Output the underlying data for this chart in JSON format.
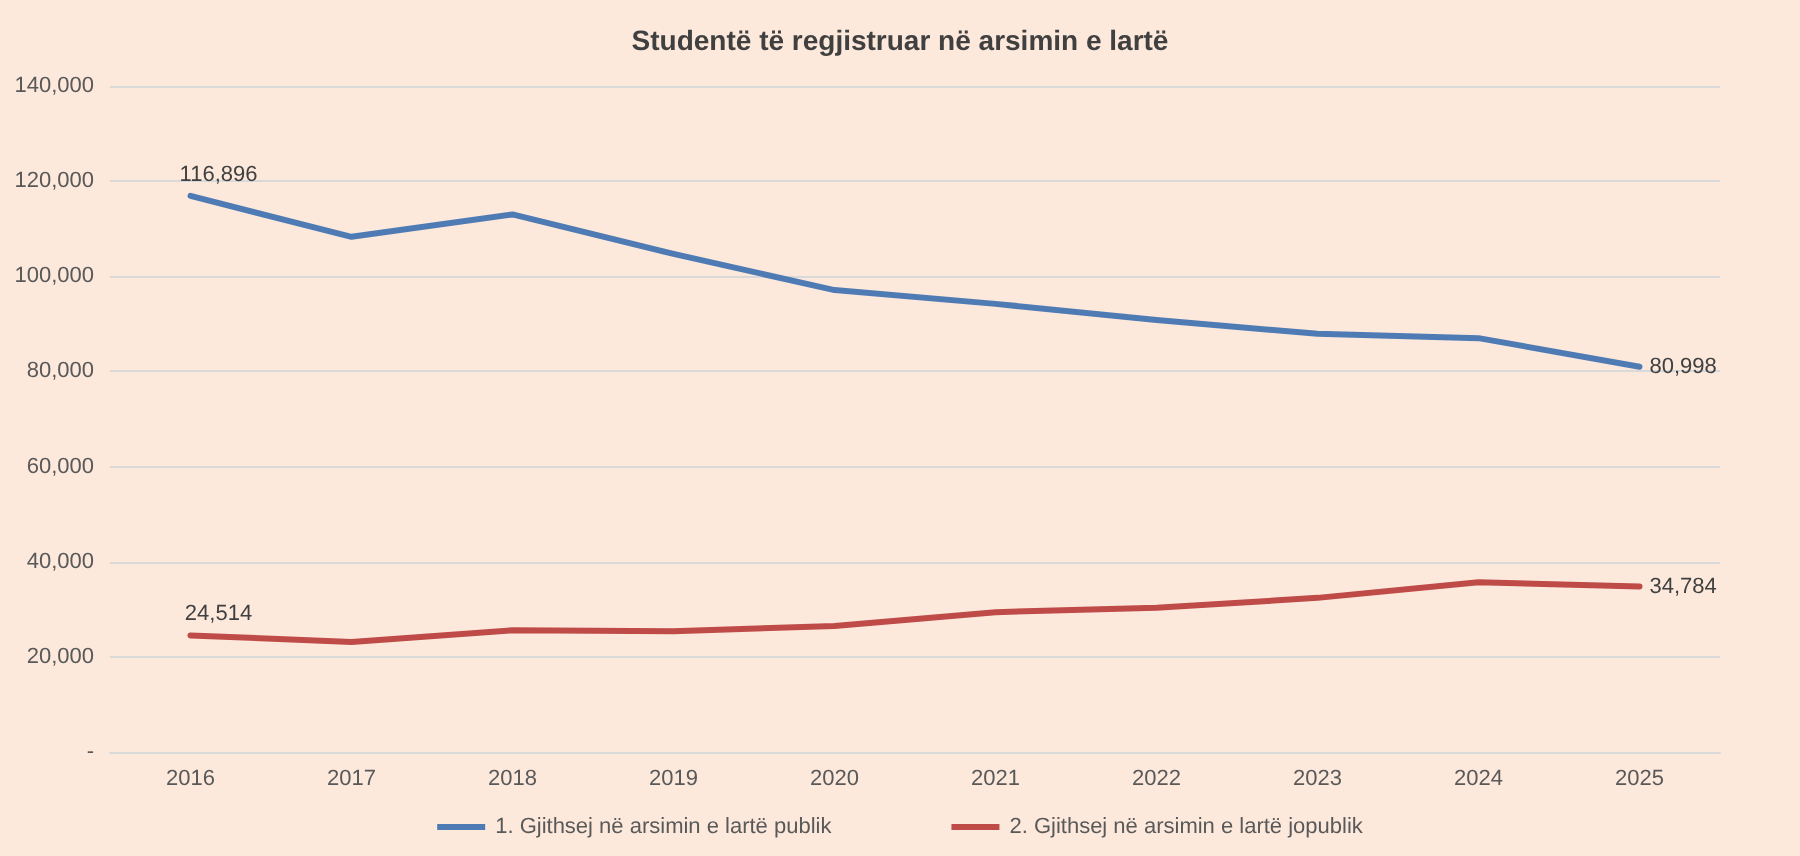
{
  "chart_data": {
    "type": "line",
    "title": "Studentë të regjistruar në arsimin e lartë",
    "categories": [
      "2016",
      "2017",
      "2018",
      "2019",
      "2020",
      "2021",
      "2022",
      "2023",
      "2024",
      "2025"
    ],
    "series": [
      {
        "name": "1. Gjithsej në arsimin e lartë publik",
        "color": "#4f7bb5",
        "values": [
          116896,
          108300,
          113000,
          104700,
          97100,
          94200,
          90800,
          87900,
          87000,
          80998
        ],
        "value_labels": [
          "116,896",
          null,
          null,
          null,
          null,
          null,
          null,
          null,
          null,
          "80,998"
        ]
      },
      {
        "name": "2. Gjithsej në arsimin e lartë jopublik",
        "color": "#be4b48",
        "values": [
          24514,
          23100,
          25600,
          25400,
          26500,
          29400,
          30300,
          32400,
          35700,
          34784
        ],
        "value_labels": [
          "24,514",
          null,
          null,
          null,
          null,
          null,
          null,
          null,
          null,
          "34,784"
        ]
      }
    ],
    "ylim": [
      0,
      140000
    ],
    "yticks": [
      {
        "value": 0,
        "label": "-"
      },
      {
        "value": 20000,
        "label": "20,000"
      },
      {
        "value": 40000,
        "label": "40,000"
      },
      {
        "value": 60000,
        "label": "60,000"
      },
      {
        "value": 80000,
        "label": "80,000"
      },
      {
        "value": 100000,
        "label": "100,000"
      },
      {
        "value": 120000,
        "label": "120,000"
      },
      {
        "value": 140000,
        "label": "140,000"
      }
    ],
    "grid": "y",
    "legend": "bottom",
    "marker": "none",
    "line_style": "solid"
  }
}
